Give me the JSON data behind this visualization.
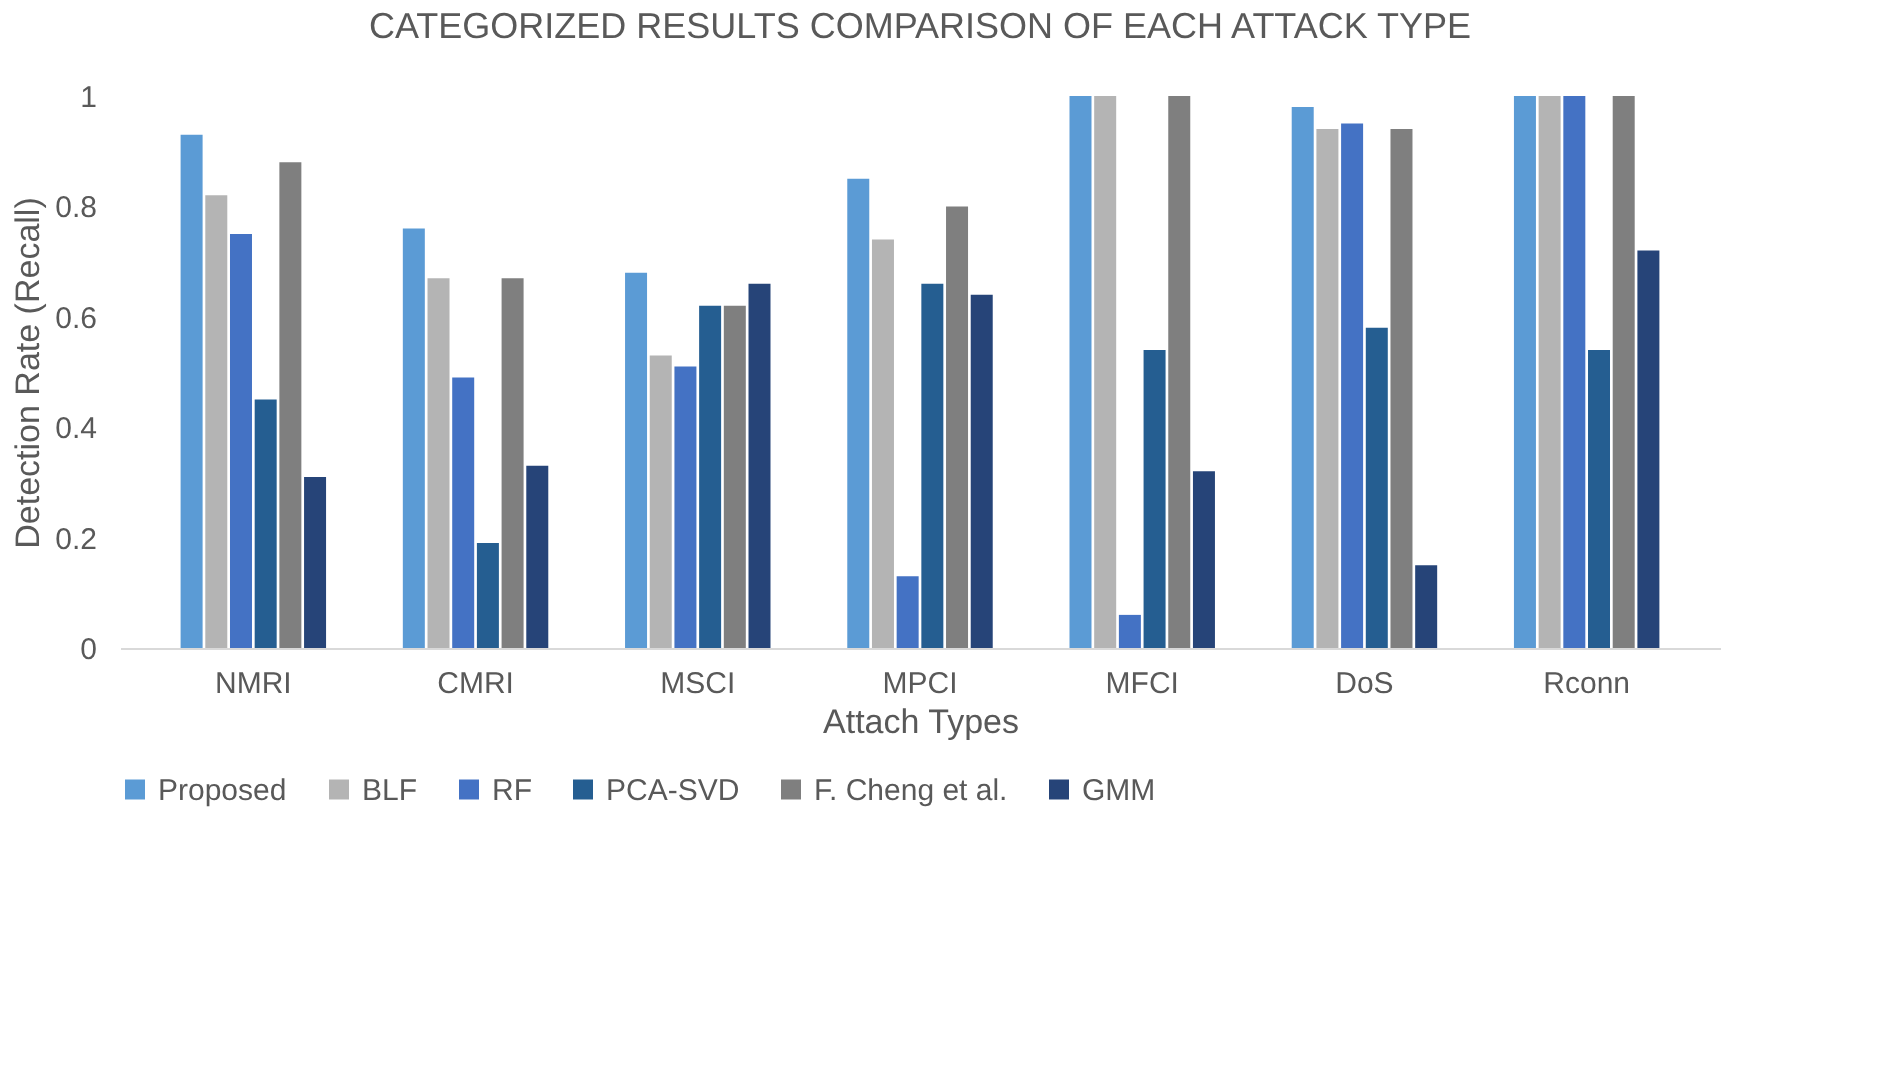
{
  "chart_data": {
    "type": "bar",
    "title": "CATEGORIZED RESULTS COMPARISON OF EACH ATTACK TYPE",
    "xlabel": "Attach Types",
    "ylabel": "Detection Rate (Recall)",
    "categories": [
      "NMRI",
      "CMRI",
      "MSCI",
      "MPCI",
      "MFCI",
      "DoS",
      "Rconn"
    ],
    "series": [
      {
        "name": "Proposed",
        "color": "#5b9bd5",
        "values": [
          0.93,
          0.76,
          0.68,
          0.85,
          1.0,
          0.98,
          1.0
        ]
      },
      {
        "name": "BLF",
        "color": "#b4b4b4",
        "values": [
          0.82,
          0.67,
          0.53,
          0.74,
          1.0,
          0.94,
          1.0
        ]
      },
      {
        "name": "RF",
        "color": "#4472c4",
        "values": [
          0.75,
          0.49,
          0.51,
          0.13,
          0.06,
          0.95,
          1.0
        ]
      },
      {
        "name": "PCA-SVD",
        "color": "#255e91",
        "values": [
          0.45,
          0.19,
          0.62,
          0.66,
          0.54,
          0.58,
          0.54
        ]
      },
      {
        "name": "F. Cheng et al.",
        "color": "#7f7f7f",
        "values": [
          0.88,
          0.67,
          0.62,
          0.8,
          1.0,
          0.94,
          1.0
        ]
      },
      {
        "name": "GMM",
        "color": "#264478",
        "values": [
          0.31,
          0.33,
          0.66,
          0.64,
          0.32,
          0.15,
          0.72
        ]
      }
    ],
    "ylim": [
      0,
      1
    ],
    "yticks": [
      0,
      0.2,
      0.4,
      0.6,
      0.8,
      1
    ],
    "grid": false,
    "legend": "bottom"
  }
}
